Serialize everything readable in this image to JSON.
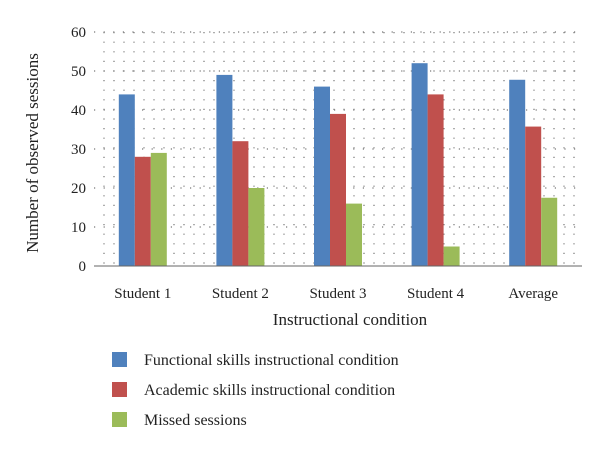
{
  "chart_data": {
    "type": "bar",
    "xlabel": "Instructional condition",
    "ylabel": "Number of observed sessions",
    "ylim": [
      0,
      60
    ],
    "yticks": [
      0,
      10,
      20,
      30,
      40,
      50,
      60
    ],
    "grid": "dotted",
    "legend_position": "bottom",
    "categories": [
      "Student 1",
      "Student 2",
      "Student 3",
      "Student 4",
      "Average"
    ],
    "series": [
      {
        "name": "Functional skills instructional condition",
        "color": "#4f81bd",
        "values": [
          44,
          49,
          46,
          52,
          47.75
        ]
      },
      {
        "name": "Academic skills instructional condition",
        "color": "#c0504d",
        "values": [
          28,
          32,
          39,
          44,
          35.75
        ]
      },
      {
        "name": "Missed sessions",
        "color": "#9bbb59",
        "values": [
          29,
          20,
          16,
          5,
          17.5
        ]
      }
    ]
  }
}
